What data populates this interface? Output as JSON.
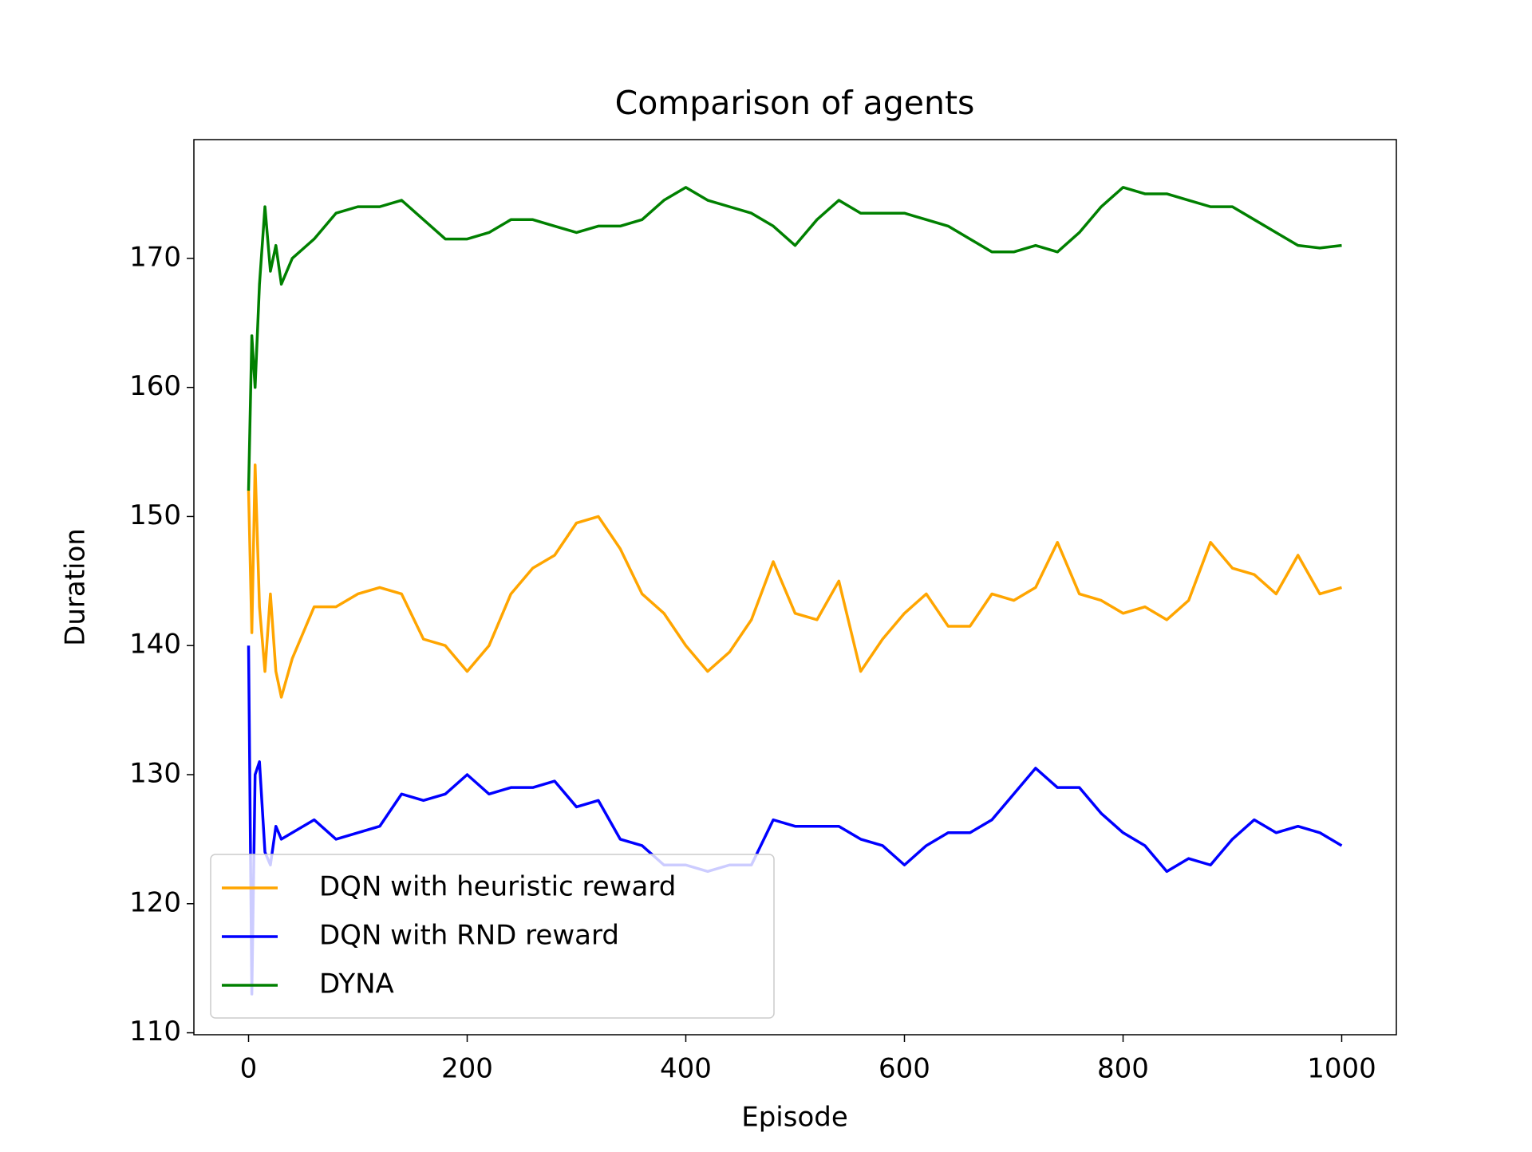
{
  "chart_data": {
    "type": "line",
    "title": "Comparison of agents",
    "x_label": "Episode",
    "y_label": "Duration",
    "x": [
      0,
      3,
      6,
      10,
      15,
      20,
      25,
      30,
      40,
      60,
      80,
      100,
      120,
      140,
      160,
      180,
      200,
      220,
      240,
      260,
      280,
      300,
      320,
      340,
      360,
      380,
      400,
      420,
      440,
      460,
      480,
      500,
      520,
      540,
      560,
      580,
      600,
      620,
      640,
      660,
      680,
      700,
      720,
      740,
      760,
      780,
      800,
      820,
      840,
      860,
      880,
      900,
      920,
      940,
      960,
      980,
      1000
    ],
    "series": [
      {
        "name": "DQN with heuristic reward",
        "color": "#ffa500",
        "values": [
          152,
          141,
          154,
          143,
          138,
          144,
          138,
          136,
          139,
          143,
          143,
          144,
          144.5,
          144,
          140.5,
          140,
          138,
          140,
          144,
          146,
          147,
          149.5,
          150,
          147.5,
          144,
          142.5,
          140,
          138,
          139.5,
          142,
          146.5,
          142.5,
          142,
          145,
          138,
          140.5,
          142.5,
          144,
          141.5,
          141.5,
          144,
          143.5,
          144.5,
          148,
          144,
          143.5,
          142.5,
          143,
          142,
          143.5,
          148,
          146,
          145.5,
          144,
          147,
          144,
          144.5
        ]
      },
      {
        "name": "DQN with RND reward",
        "color": "#0000ff",
        "values": [
          140,
          113,
          130,
          131,
          124,
          123,
          126,
          125,
          125.5,
          126.5,
          125,
          125.5,
          126,
          128.5,
          128,
          128.5,
          130,
          128.5,
          129,
          129,
          129.5,
          127.5,
          128,
          125,
          124.5,
          123,
          123,
          122.5,
          123,
          123,
          126.5,
          126,
          126,
          126,
          125,
          124.5,
          123,
          124.5,
          125.5,
          125.5,
          126.5,
          128.5,
          130.5,
          129,
          129,
          127,
          125.5,
          124.5,
          122.5,
          123.5,
          123,
          125,
          126.5,
          125.5,
          126,
          125.5,
          124.5
        ]
      },
      {
        "name": "DYNA",
        "color": "#008000",
        "values": [
          152,
          164,
          160,
          168,
          174,
          169,
          171,
          168,
          170,
          171.5,
          173.5,
          174,
          174,
          174.5,
          173,
          171.5,
          171.5,
          172,
          173,
          173,
          172.5,
          172,
          172.5,
          172.5,
          173,
          174.5,
          175.5,
          174.5,
          174,
          173.5,
          172.5,
          171,
          173,
          174.5,
          173.5,
          173.5,
          173.5,
          173,
          172.5,
          171.5,
          170.5,
          170.5,
          171,
          170.5,
          172,
          174,
          175.5,
          175,
          175,
          174.5,
          174,
          174,
          173,
          172,
          171,
          170.8,
          171
        ]
      }
    ],
    "xlim": [
      -50,
      1050
    ],
    "ylim": [
      109.85,
      179.2
    ],
    "xticks": [
      0,
      200,
      400,
      600,
      800,
      1000
    ],
    "yticks": [
      110,
      120,
      130,
      140,
      150,
      160,
      170
    ],
    "legend": "lower left"
  }
}
